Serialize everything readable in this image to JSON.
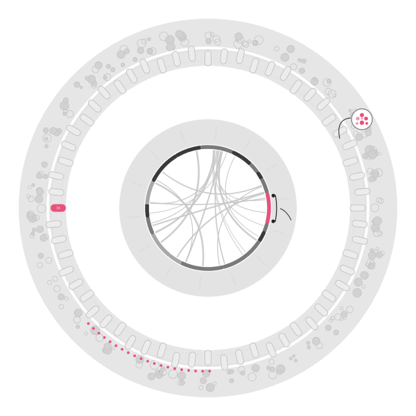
{
  "colors": {
    "background": "#ffffff",
    "outer_band": "#e6e6e6",
    "inner_disc": "#e3e3e3",
    "bubble_fill": "#d2d2d2",
    "bubble_stroke": "#c4c4c4",
    "pill_stroke": "#bdbdbd",
    "highlight": "#e8527a",
    "highlight_light": "#f29ab3",
    "chord": "#c8c8c8",
    "segment_dark": "#3a3a3a",
    "segment_mid": "#7a7a7a",
    "segment_light": "#a8a8a8",
    "pointer": "#222222"
  },
  "outer_ring": {
    "highlighted_pill_label": "1A",
    "pill_count": 60,
    "highlighted_pill_index": 45,
    "pink_dot_count": 20
  },
  "inner_circle": {
    "segments": [
      {
        "color": "dark",
        "span": 22
      },
      {
        "color": "mid",
        "span": 28
      },
      {
        "color": "dark",
        "span": 18
      },
      {
        "color": "mid",
        "span": 8
      },
      {
        "color": "dark",
        "span": 5
      },
      {
        "color": "mid",
        "span": 12
      },
      {
        "color": "pink",
        "span": 26
      },
      {
        "color": "mid",
        "span": 6
      },
      {
        "color": "dark",
        "span": 8
      },
      {
        "color": "mid",
        "span": 40
      },
      {
        "color": "mid",
        "span": 38
      },
      {
        "color": "light",
        "span": 10
      },
      {
        "color": "light",
        "span": 24
      },
      {
        "color": "mid",
        "span": 14
      },
      {
        "color": "dark",
        "span": 10
      },
      {
        "color": "light",
        "span": 20
      },
      {
        "color": "dark",
        "span": 30
      }
    ],
    "chord_count": 22
  },
  "callout": {
    "icon": "bubble-cluster-icon"
  }
}
